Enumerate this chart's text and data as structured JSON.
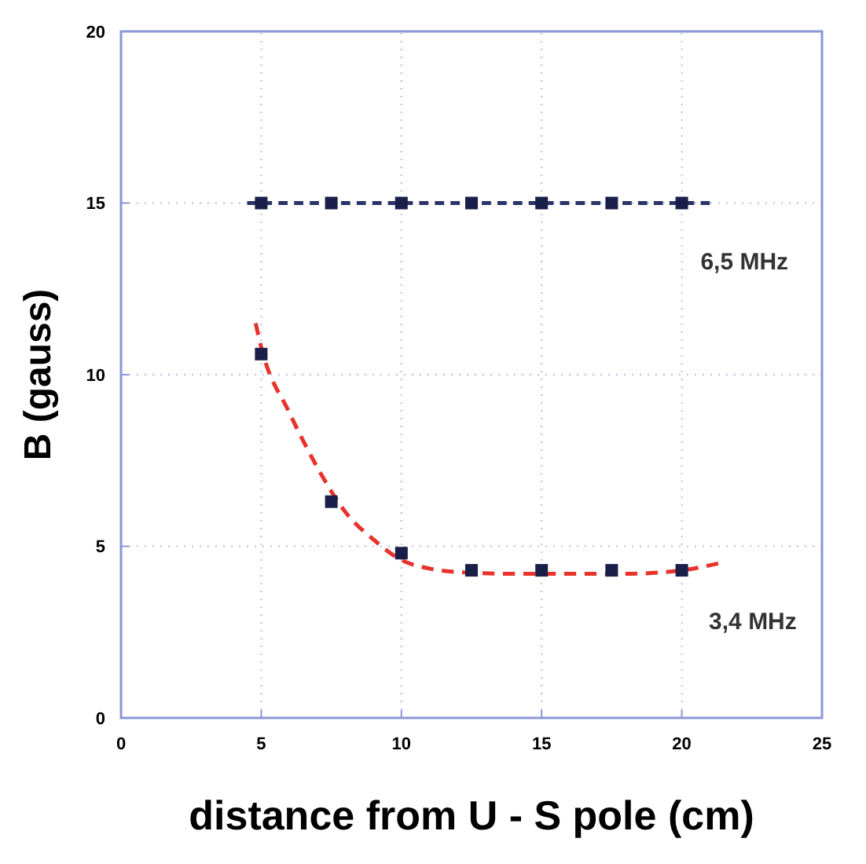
{
  "chart_data": {
    "type": "scatter",
    "xlabel": "distance from U - S pole (cm)",
    "ylabel": "B (gauss)",
    "xlim": [
      0,
      25
    ],
    "xticks": [
      0,
      5,
      10,
      15,
      20,
      25
    ],
    "ylim": [
      0,
      20
    ],
    "yticks": [
      0,
      5,
      10,
      15,
      20
    ],
    "grid": true,
    "series": [
      {
        "type": "line",
        "name": "6,5 MHz",
        "color": "#2a3466",
        "line_style": "dashed",
        "marker": "none",
        "x": [
          4.5,
          21
        ],
        "values": [
          15,
          15
        ]
      },
      {
        "type": "line",
        "name": "3,4 MHz",
        "color": "#e8322a",
        "line_style": "dashed",
        "marker": "none",
        "x": [
          4.8,
          5,
          6,
          7,
          7.5,
          8,
          9,
          10,
          11,
          12,
          14,
          16,
          18,
          20,
          21.3
        ],
        "values": [
          11.5,
          10.8,
          8.9,
          7.3,
          6.6,
          6.0,
          5.2,
          4.6,
          4.35,
          4.25,
          4.2,
          4.2,
          4.2,
          4.3,
          4.5
        ]
      },
      {
        "color": "#1a1f4a",
        "marker": "square",
        "x": [
          5,
          7.5,
          10,
          12.5,
          15,
          17.5,
          20
        ],
        "values": [
          15,
          15,
          15,
          15,
          15,
          15,
          15
        ]
      },
      {
        "color": "#1a1f4a",
        "marker": "square",
        "x": [
          5,
          7.5,
          10,
          12.5,
          15,
          17.5,
          20
        ],
        "values": [
          10.6,
          6.3,
          4.8,
          4.3,
          4.3,
          4.3,
          4.3
        ]
      }
    ]
  }
}
